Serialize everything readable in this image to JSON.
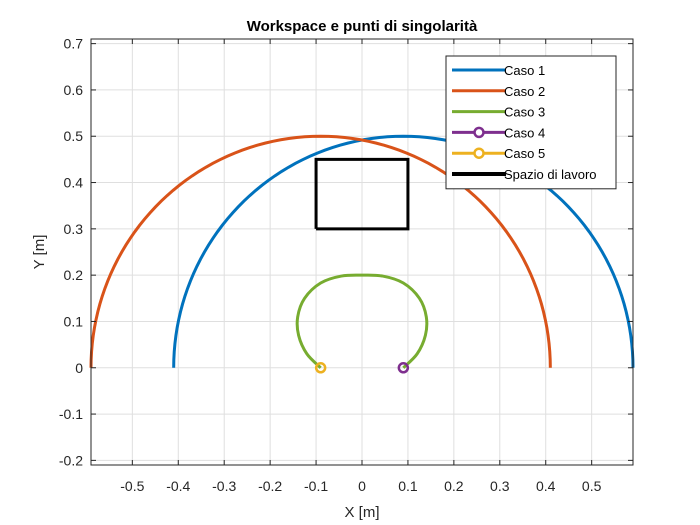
{
  "chart_data": {
    "type": "line",
    "title": "Workspace e punti di singolarità",
    "xlabel": "X [m]",
    "ylabel": "Y [m]",
    "xlim": [
      -0.59,
      0.59
    ],
    "ylim": [
      -0.21,
      0.71
    ],
    "xticks": [
      -0.5,
      -0.4,
      -0.3,
      -0.2,
      -0.1,
      0,
      0.1,
      0.2,
      0.3,
      0.4,
      0.5
    ],
    "xtick_labels": [
      "-0.5",
      "-0.4",
      "-0.3",
      "-0.2",
      "-0.1",
      "0",
      "0.1",
      "0.2",
      "0.3",
      "0.4",
      "0.5"
    ],
    "yticks": [
      -0.2,
      -0.1,
      0,
      0.1,
      0.2,
      0.3,
      0.4,
      0.5,
      0.6,
      0.7
    ],
    "ytick_labels": [
      "-0.2",
      "-0.1",
      "0",
      "0.1",
      "0.2",
      "0.3",
      "0.4",
      "0.5",
      "0.6",
      "0.7"
    ],
    "grid": true,
    "legend_position": "top-right",
    "series": [
      {
        "name": "Caso 1",
        "color": "#0072BD",
        "style": "line",
        "shape": "semicircle",
        "center": [
          0.09,
          0
        ],
        "radius": 0.5
      },
      {
        "name": "Caso 2",
        "color": "#D95319",
        "style": "line",
        "shape": "semicircle",
        "center": [
          -0.09,
          0
        ],
        "radius": 0.5
      },
      {
        "name": "Caso 3",
        "color": "#77AC30",
        "style": "line",
        "shape": "loop",
        "points": [
          [
            -0.09,
            0
          ],
          [
            -0.12,
            0.03
          ],
          [
            -0.138,
            0.07
          ],
          [
            -0.14,
            0.11
          ],
          [
            -0.125,
            0.15
          ],
          [
            -0.09,
            0.183
          ],
          [
            -0.045,
            0.198
          ],
          [
            0,
            0.2
          ],
          [
            0.045,
            0.198
          ],
          [
            0.09,
            0.183
          ],
          [
            0.125,
            0.15
          ],
          [
            0.14,
            0.11
          ],
          [
            0.138,
            0.07
          ],
          [
            0.12,
            0.03
          ],
          [
            0.09,
            0
          ]
        ]
      },
      {
        "name": "Caso 4",
        "color": "#7E2F8E",
        "style": "marker",
        "points": [
          [
            0.09,
            0
          ]
        ]
      },
      {
        "name": "Caso 5",
        "color": "#EDB120",
        "style": "marker",
        "points": [
          [
            -0.09,
            0
          ]
        ]
      },
      {
        "name": "Spazio di lavoro",
        "color": "#000000",
        "style": "line",
        "shape": "rectangle",
        "points": [
          [
            -0.1,
            0.3
          ],
          [
            0.1,
            0.3
          ],
          [
            0.1,
            0.45
          ],
          [
            -0.1,
            0.45
          ],
          [
            -0.1,
            0.3
          ]
        ]
      }
    ]
  }
}
